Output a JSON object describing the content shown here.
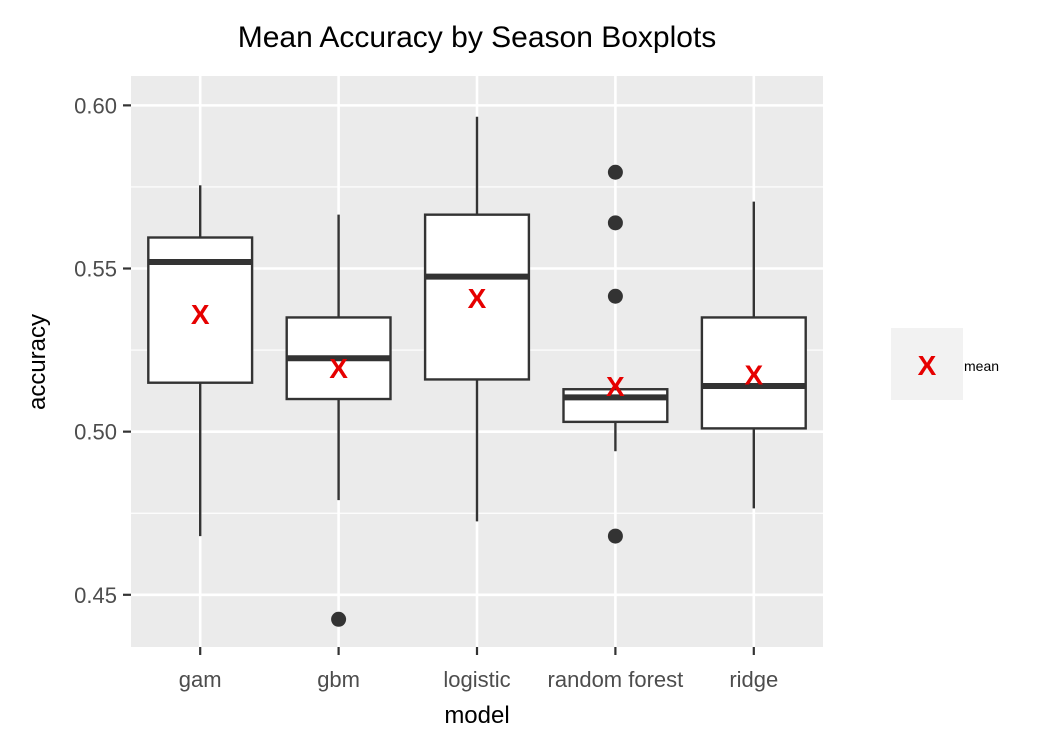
{
  "chart_data": {
    "type": "boxplot",
    "title": "Mean Accuracy by Season Boxplots",
    "xlabel": "model",
    "ylabel": "accuracy",
    "ylim": [
      0.434,
      0.609
    ],
    "yticks": [
      0.45,
      0.5,
      0.55,
      0.6
    ],
    "ytick_labels": [
      "0.45",
      "0.50",
      "0.55",
      "0.60"
    ],
    "categories": [
      "gam",
      "gbm",
      "logistic",
      "random forest",
      "ridge"
    ],
    "boxes": [
      {
        "category": "gam",
        "whisker_low": 0.468,
        "q1": 0.515,
        "median": 0.552,
        "q3": 0.5595,
        "whisker_high": 0.5755,
        "mean": 0.536,
        "outliers": []
      },
      {
        "category": "gbm",
        "whisker_low": 0.479,
        "q1": 0.51,
        "median": 0.5225,
        "q3": 0.535,
        "whisker_high": 0.5665,
        "mean": 0.5195,
        "outliers": [
          0.4425
        ]
      },
      {
        "category": "logistic",
        "whisker_low": 0.4725,
        "q1": 0.516,
        "median": 0.5475,
        "q3": 0.5665,
        "whisker_high": 0.5965,
        "mean": 0.541,
        "outliers": []
      },
      {
        "category": "random forest",
        "whisker_low": 0.494,
        "q1": 0.503,
        "median": 0.5105,
        "q3": 0.513,
        "whisker_high": 0.513,
        "mean": 0.514,
        "outliers": [
          0.5795,
          0.564,
          0.5415,
          0.468
        ]
      },
      {
        "category": "ridge",
        "whisker_low": 0.4765,
        "q1": 0.501,
        "median": 0.514,
        "q3": 0.535,
        "whisker_high": 0.5705,
        "mean": 0.5175,
        "outliers": []
      }
    ],
    "mean_marker": "X",
    "legend": {
      "label": "mean",
      "position": "right"
    },
    "grid": true,
    "colors": {
      "panel_bg": "#ebebeb",
      "grid": "#ffffff",
      "box_line": "#333333",
      "mean": "#e60000",
      "outlier": "#333333",
      "legend_key_bg": "#f2f2f2"
    }
  }
}
